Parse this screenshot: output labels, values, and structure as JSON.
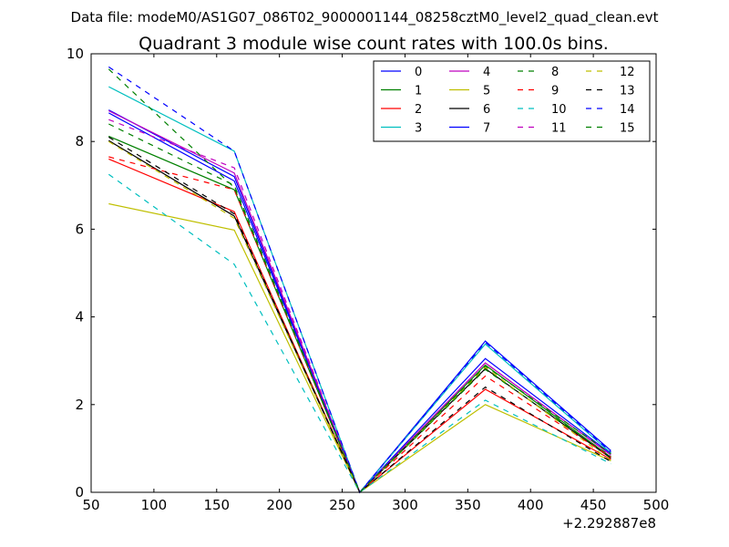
{
  "chart_data": {
    "type": "line",
    "suptitle": "Data file: modeM0/AS1G07_086T02_9000001144_08258cztM0_level2_quad_clean.evt",
    "title": "Quadrant 3 module wise count rates with 100.0s bins.",
    "xlabel": "",
    "ylabel": "",
    "x_offset_label": "+2.292887e8",
    "xlim": [
      50,
      500
    ],
    "ylim": [
      0,
      10
    ],
    "xticks": [
      "50",
      "100",
      "150",
      "200",
      "250",
      "300",
      "350",
      "400",
      "450",
      "500"
    ],
    "yticks": [
      "0",
      "2",
      "4",
      "6",
      "8",
      "10"
    ],
    "legend_position": "top-right",
    "x": [
      64,
      164,
      264,
      364,
      464
    ],
    "series": [
      {
        "name": "0",
        "color": "#0000ff",
        "style": "solid",
        "values": [
          8.72,
          7.2,
          0.0,
          3.45,
          0.95
        ]
      },
      {
        "name": "1",
        "color": "#008000",
        "style": "solid",
        "values": [
          8.12,
          6.9,
          0.0,
          2.9,
          0.8
        ]
      },
      {
        "name": "2",
        "color": "#ff0000",
        "style": "solid",
        "values": [
          7.6,
          6.4,
          0.0,
          2.35,
          0.75
        ]
      },
      {
        "name": "3",
        "color": "#00bfbf",
        "style": "solid",
        "values": [
          9.25,
          7.78,
          0.0,
          3.38,
          0.9
        ]
      },
      {
        "name": "4",
        "color": "#bf00bf",
        "style": "solid",
        "values": [
          8.7,
          7.28,
          0.0,
          2.95,
          0.85
        ]
      },
      {
        "name": "5",
        "color": "#bfbf00",
        "style": "solid",
        "values": [
          6.58,
          5.98,
          0.0,
          2.0,
          0.72
        ]
      },
      {
        "name": "6",
        "color": "#000000",
        "style": "solid",
        "values": [
          8.02,
          6.3,
          0.0,
          2.82,
          0.78
        ]
      },
      {
        "name": "7",
        "color": "#0000ff",
        "style": "solid",
        "values": [
          8.65,
          7.1,
          0.0,
          3.05,
          0.88
        ]
      },
      {
        "name": "8",
        "color": "#008000",
        "style": "dashed",
        "values": [
          8.4,
          7.0,
          0.0,
          2.8,
          0.82
        ]
      },
      {
        "name": "9",
        "color": "#ff0000",
        "style": "dashed",
        "values": [
          7.65,
          6.9,
          0.0,
          2.65,
          0.8
        ]
      },
      {
        "name": "10",
        "color": "#00bfbf",
        "style": "dashed",
        "values": [
          7.25,
          5.2,
          0.0,
          2.1,
          0.65
        ]
      },
      {
        "name": "11",
        "color": "#bf00bf",
        "style": "dashed",
        "values": [
          8.5,
          7.4,
          0.0,
          2.95,
          0.85
        ]
      },
      {
        "name": "12",
        "color": "#bfbf00",
        "style": "dashed",
        "values": [
          8.0,
          6.25,
          0.0,
          2.85,
          0.72
        ]
      },
      {
        "name": "13",
        "color": "#000000",
        "style": "dashed",
        "values": [
          8.1,
          6.35,
          0.0,
          2.4,
          0.7
        ]
      },
      {
        "name": "14",
        "color": "#0000ff",
        "style": "dashed",
        "values": [
          9.7,
          7.78,
          0.0,
          3.42,
          0.92
        ]
      },
      {
        "name": "15",
        "color": "#008000",
        "style": "dashed",
        "values": [
          9.65,
          6.95,
          0.0,
          2.88,
          0.88
        ]
      }
    ]
  }
}
